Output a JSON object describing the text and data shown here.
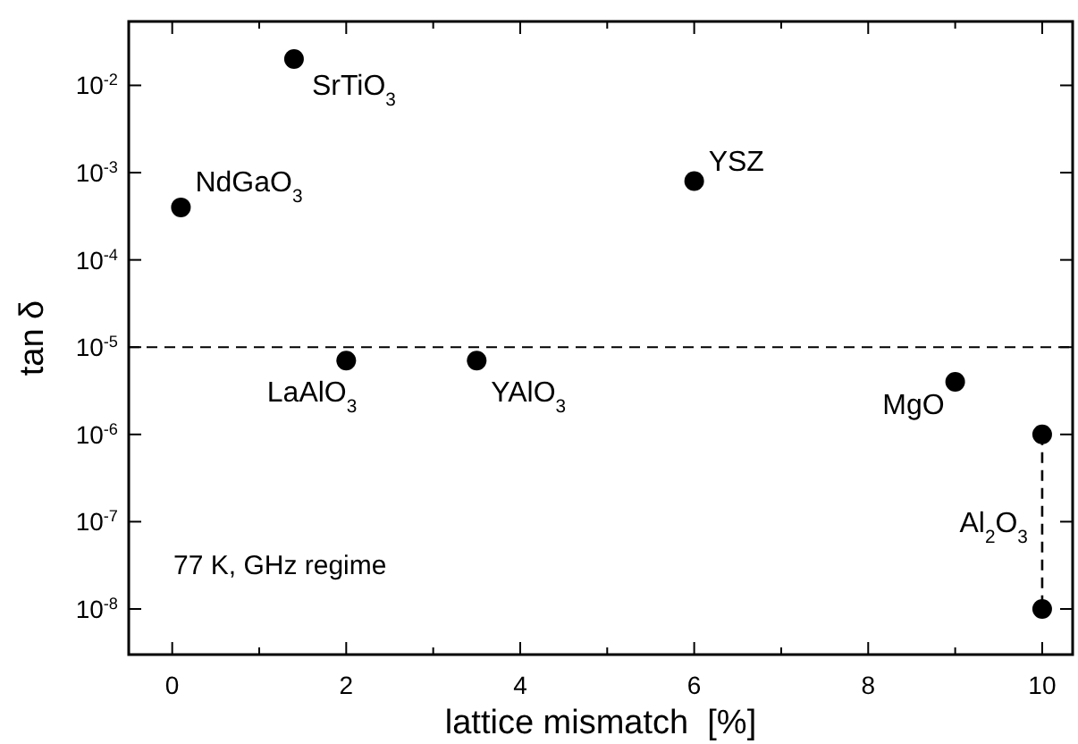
{
  "chart_data": {
    "type": "scatter",
    "xlabel": "lattice mismatch  [%]",
    "ylabel": "tan δ",
    "log": "y",
    "marker": "circle",
    "grid": false,
    "xlim": [
      -0.5,
      10.35
    ],
    "ylim": [
      3e-09,
      0.054
    ],
    "xticks": [
      0,
      {
        "value": 1,
        "label": null
      },
      2,
      {
        "value": 3,
        "label": null
      },
      4,
      {
        "value": 5,
        "label": null
      },
      6,
      {
        "value": 7,
        "label": null
      },
      8,
      {
        "value": 9,
        "label": null
      },
      10
    ],
    "yticks": [
      {
        "value": 1e-08,
        "label": "10$^{-8}$"
      },
      {
        "value": 1e-07,
        "label": "10$^{-7}$"
      },
      {
        "value": 1e-06,
        "label": "10$^{-6}$"
      },
      {
        "value": 1e-05,
        "label": "10$^{-5}$"
      },
      {
        "value": 0.0001,
        "label": "10$^{-4}$"
      },
      {
        "value": 0.001,
        "label": "10$^{-3}$"
      },
      {
        "value": 0.01,
        "label": "10$^{-2}$"
      }
    ],
    "series": [
      {
        "color": "#000000",
        "x": [
          1.4,
          0.1,
          6,
          2,
          3.5,
          9
        ],
        "values": [
          0.02,
          0.0004,
          0.0008,
          7e-06,
          7e-06,
          4e-06
        ]
      },
      {
        "type": "line",
        "color": "#000000",
        "line_style": "dashed",
        "x": [
          10,
          10
        ],
        "values": [
          1e-06,
          1e-08
        ]
      }
    ],
    "ref_lines": [
      {
        "axis": "y",
        "value": 1e-05,
        "line_style": "dashed",
        "color": "#000000"
      }
    ],
    "annotations": [
      {
        "text": "SrTiO$_{3}$",
        "x": 1.4,
        "y": 0.02
      },
      {
        "text": "NdGaO$_{3}$",
        "x": 0.1,
        "y": 0.0004
      },
      {
        "text": "YSZ",
        "x": 6,
        "y": 0.0008
      },
      {
        "text": "LaAlO$_{3}$",
        "x": 2,
        "y": 7e-06
      },
      {
        "text": "YAlO$_{3}$",
        "x": 3.5,
        "y": 7e-06
      },
      {
        "text": "MgO",
        "x": 9,
        "y": 4e-06
      },
      {
        "text": "Al$_{2}$O$_{3}$",
        "x": 10,
        "y": 1e-07
      },
      "77 K, GHz regime"
    ]
  }
}
